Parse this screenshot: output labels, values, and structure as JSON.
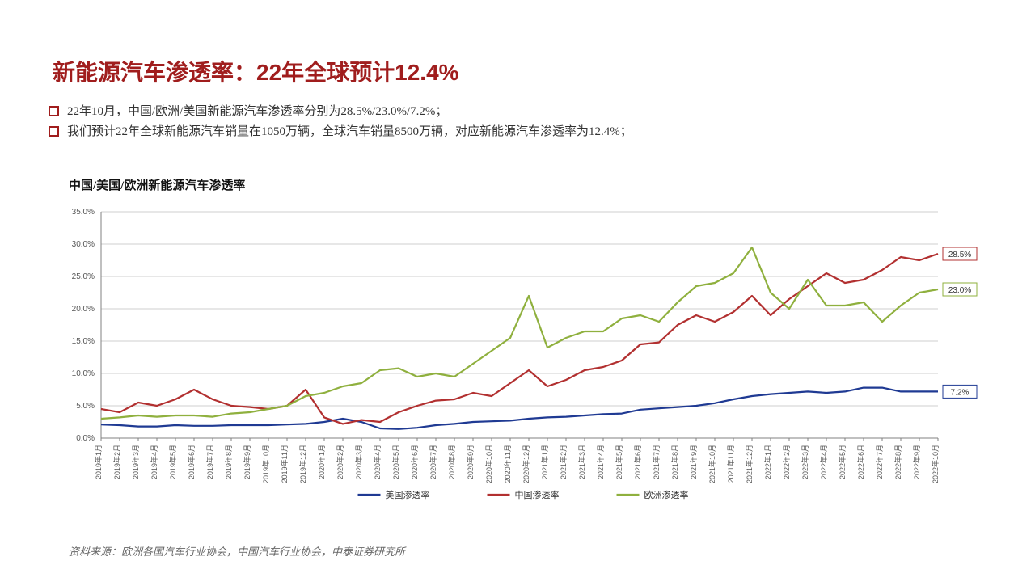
{
  "title": "新能源汽车渗透率：22年全球预计12.4%",
  "bullets": [
    "22年10月，中国/欧洲/美国新能源汽车渗透率分别为28.5%/23.0%/7.2%；",
    "我们预计22年全球新能源汽车销量在1050万辆，全球汽车销量8500万辆，对应新能源汽车渗透率为12.4%；"
  ],
  "chart": {
    "type": "line",
    "title": "中国/美国/欧洲新能源汽车渗透率",
    "ylim": [
      0,
      35
    ],
    "ytick_step": 5,
    "ytick_format": "percent_one_decimal",
    "y_ticks": [
      "0.0%",
      "5.0%",
      "10.0%",
      "15.0%",
      "20.0%",
      "25.0%",
      "30.0%",
      "35.0%"
    ],
    "background_color": "#ffffff",
    "grid_color": "#cfcfcf",
    "axis_color": "#808080",
    "tick_font_size": 10,
    "line_width": 2.2,
    "categories": [
      "2019年1月",
      "2019年2月",
      "2019年3月",
      "2019年4月",
      "2019年5月",
      "2019年6月",
      "2019年7月",
      "2019年8月",
      "2019年9月",
      "2019年10月",
      "2019年11月",
      "2019年12月",
      "2020年1月",
      "2020年2月",
      "2020年3月",
      "2020年4月",
      "2020年5月",
      "2020年6月",
      "2020年7月",
      "2020年8月",
      "2020年9月",
      "2020年10月",
      "2020年11月",
      "2020年12月",
      "2021年1月",
      "2021年2月",
      "2021年3月",
      "2021年4月",
      "2021年5月",
      "2021年6月",
      "2021年7月",
      "2021年8月",
      "2021年9月",
      "2021年10月",
      "2021年11月",
      "2021年12月",
      "2022年1月",
      "2022年2月",
      "2022年3月",
      "2022年4月",
      "2022年5月",
      "2022年6月",
      "2022年7月",
      "2022年8月",
      "2022年9月",
      "2022年10月"
    ],
    "series": [
      {
        "name": "美国渗透率",
        "color": "#1f3a93",
        "end_label": "7.2%",
        "values": [
          2.1,
          2.0,
          1.8,
          1.8,
          2.0,
          1.9,
          1.9,
          2.0,
          2.0,
          2.0,
          2.1,
          2.2,
          2.5,
          3.0,
          2.5,
          1.5,
          1.4,
          1.6,
          2.0,
          2.2,
          2.5,
          2.6,
          2.7,
          3.0,
          3.2,
          3.3,
          3.5,
          3.7,
          3.8,
          4.4,
          4.6,
          4.8,
          5.0,
          5.4,
          6.0,
          6.5,
          6.8,
          7.0,
          7.2,
          7.0,
          7.2,
          7.8,
          7.8,
          7.2,
          7.2,
          7.2
        ]
      },
      {
        "name": "中国渗透率",
        "color": "#b23030",
        "end_label": "28.5%",
        "values": [
          4.5,
          4.0,
          5.5,
          5.0,
          6.0,
          7.5,
          6.0,
          5.0,
          4.8,
          4.5,
          5.0,
          7.5,
          3.2,
          2.2,
          2.8,
          2.5,
          4.0,
          5.0,
          5.8,
          6.0,
          7.0,
          6.5,
          8.5,
          10.5,
          8.0,
          9.0,
          10.5,
          11.0,
          12.0,
          14.5,
          14.8,
          17.5,
          19.0,
          18.0,
          19.5,
          22.0,
          19.0,
          21.5,
          23.5,
          25.5,
          24.0,
          24.5,
          26.0,
          28.0,
          27.5,
          28.5
        ]
      },
      {
        "name": "欧洲渗透率",
        "color": "#8fb03e",
        "end_label": "23.0%",
        "values": [
          3.0,
          3.2,
          3.5,
          3.3,
          3.5,
          3.5,
          3.3,
          3.8,
          4.0,
          4.5,
          5.0,
          6.5,
          7.0,
          8.0,
          8.5,
          10.5,
          10.8,
          9.5,
          10.0,
          9.5,
          11.5,
          13.5,
          15.5,
          22.0,
          14.0,
          15.5,
          16.5,
          16.5,
          18.5,
          19.0,
          18.0,
          21.0,
          23.5,
          24.0,
          25.5,
          29.5,
          22.5,
          20.0,
          24.5,
          20.5,
          20.5,
          21.0,
          18.0,
          20.5,
          22.5,
          23.0
        ]
      }
    ],
    "legend": {
      "position": "bottom",
      "marker_style": "line",
      "font_size": 11,
      "items": [
        "美国渗透率",
        "中国渗透率",
        "欧洲渗透率"
      ]
    }
  },
  "source": "资料来源：欧洲各国汽车行业协会，中国汽车行业协会，中泰证券研究所"
}
